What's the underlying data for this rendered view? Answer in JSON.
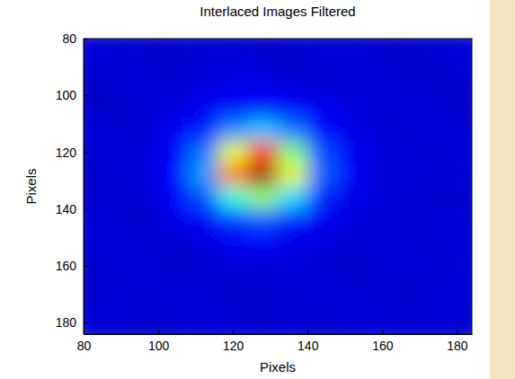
{
  "chart_data": {
    "type": "heatmap",
    "title": "Interlaced Images Filtered",
    "x_label": "Pixels",
    "y_label": "Pixels",
    "color": "jet",
    "x": [
      80,
      88,
      96,
      104,
      112,
      120,
      128,
      136,
      144,
      152,
      160,
      168,
      176,
      184
    ],
    "y": [
      80,
      88,
      96,
      104,
      112,
      120,
      128,
      136,
      144,
      152,
      160,
      168,
      176,
      184
    ],
    "z": [
      [
        0.08,
        0.09,
        0.07,
        0.08,
        0.09,
        0.08,
        0.07,
        0.08,
        0.09,
        0.08,
        0.07,
        0.08,
        0.09,
        0.08
      ],
      [
        0.09,
        0.08,
        0.08,
        0.07,
        0.08,
        0.09,
        0.08,
        0.07,
        0.08,
        0.09,
        0.08,
        0.07,
        0.08,
        0.09
      ],
      [
        0.07,
        0.08,
        0.09,
        0.08,
        0.09,
        0.1,
        0.1,
        0.09,
        0.08,
        0.08,
        0.09,
        0.08,
        0.07,
        0.08
      ],
      [
        0.08,
        0.07,
        0.08,
        0.09,
        0.11,
        0.12,
        0.13,
        0.12,
        0.11,
        0.09,
        0.08,
        0.09,
        0.08,
        0.07
      ],
      [
        0.09,
        0.08,
        0.08,
        0.11,
        0.15,
        0.26,
        0.32,
        0.24,
        0.13,
        0.1,
        0.08,
        0.08,
        0.09,
        0.08
      ],
      [
        0.08,
        0.09,
        0.08,
        0.13,
        0.24,
        0.6,
        0.82,
        0.5,
        0.2,
        0.11,
        0.09,
        0.08,
        0.08,
        0.09
      ],
      [
        0.07,
        0.08,
        0.09,
        0.13,
        0.28,
        0.75,
        0.97,
        0.6,
        0.22,
        0.12,
        0.08,
        0.09,
        0.08,
        0.08
      ],
      [
        0.08,
        0.08,
        0.08,
        0.12,
        0.2,
        0.4,
        0.52,
        0.34,
        0.16,
        0.1,
        0.09,
        0.08,
        0.07,
        0.08
      ],
      [
        0.09,
        0.08,
        0.07,
        0.1,
        0.12,
        0.17,
        0.2,
        0.15,
        0.11,
        0.09,
        0.08,
        0.08,
        0.09,
        0.08
      ],
      [
        0.08,
        0.09,
        0.08,
        0.08,
        0.09,
        0.11,
        0.12,
        0.1,
        0.09,
        0.08,
        0.09,
        0.08,
        0.08,
        0.09
      ],
      [
        0.08,
        0.08,
        0.09,
        0.07,
        0.08,
        0.09,
        0.08,
        0.09,
        0.08,
        0.07,
        0.08,
        0.09,
        0.08,
        0.08
      ],
      [
        0.07,
        0.08,
        0.08,
        0.09,
        0.08,
        0.07,
        0.08,
        0.08,
        0.09,
        0.08,
        0.08,
        0.07,
        0.08,
        0.09
      ],
      [
        0.08,
        0.09,
        0.08,
        0.08,
        0.09,
        0.08,
        0.07,
        0.08,
        0.08,
        0.09,
        0.08,
        0.08,
        0.09,
        0.08
      ],
      [
        0.09,
        0.08,
        0.07,
        0.08,
        0.08,
        0.09,
        0.08,
        0.09,
        0.07,
        0.08,
        0.09,
        0.08,
        0.08,
        0.07
      ]
    ],
    "zlim": [
      0,
      1
    ],
    "xlim": [
      80,
      184
    ],
    "ylim": [
      80,
      184
    ],
    "xticks": [
      80,
      100,
      120,
      140,
      160,
      180
    ],
    "yticks": [
      80,
      100,
      120,
      140,
      160,
      180
    ]
  }
}
